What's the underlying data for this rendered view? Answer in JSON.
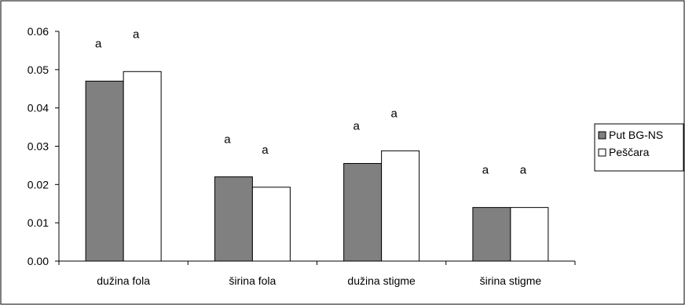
{
  "chart_data": {
    "type": "bar",
    "categories": [
      "dužina fola",
      "širina fola",
      "dužina stigme",
      "širina stigme"
    ],
    "series": [
      {
        "name": "Put BG-NS",
        "values": [
          0.047,
          0.022,
          0.0255,
          0.014
        ],
        "color": "#808080"
      },
      {
        "name": "Peščara",
        "values": [
          0.0495,
          0.0193,
          0.0288,
          0.014
        ],
        "color": "#ffffff"
      }
    ],
    "significance": [
      [
        "a",
        "a"
      ],
      [
        "a",
        "a"
      ],
      [
        "a",
        "a"
      ],
      [
        "a",
        "a"
      ]
    ],
    "yticks": [
      "0.00",
      "0.01",
      "0.02",
      "0.03",
      "0.04",
      "0.05",
      "0.06"
    ],
    "ylim": [
      0,
      0.06
    ],
    "legend": "right"
  }
}
